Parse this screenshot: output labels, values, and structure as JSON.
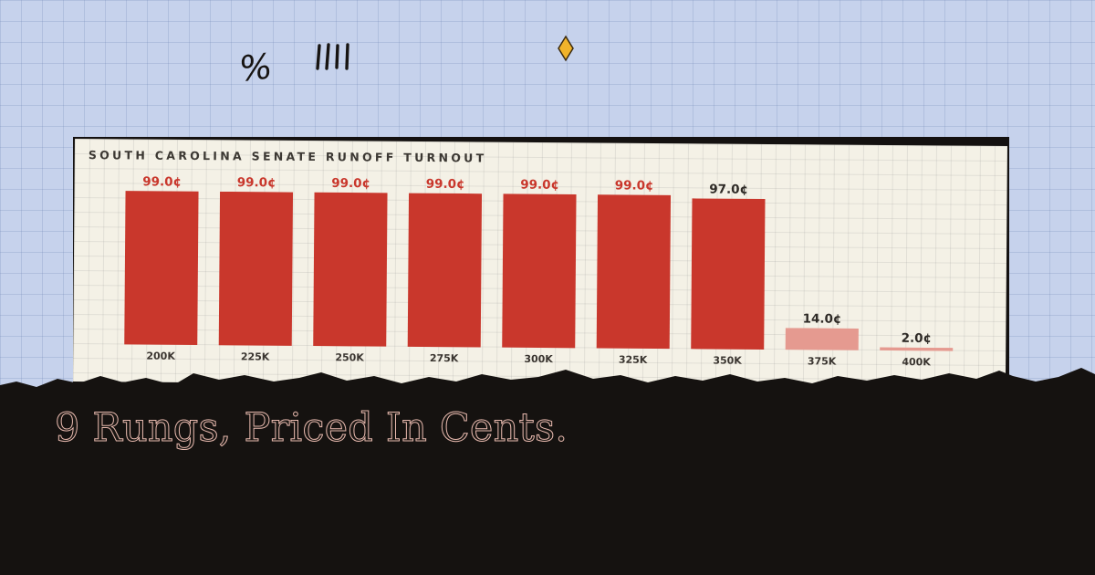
{
  "doodles": {
    "percent_glyph": "%"
  },
  "chart_data": {
    "type": "bar",
    "title": "SOUTH CAROLINA SENATE RUNOFF TURNOUT",
    "categories": [
      "200K",
      "225K",
      "250K",
      "275K",
      "300K",
      "325K",
      "350K",
      "375K",
      "400K"
    ],
    "values": [
      99.0,
      99.0,
      99.0,
      99.0,
      99.0,
      99.0,
      97.0,
      14.0,
      2.0
    ],
    "value_labels": [
      "99.0¢",
      "99.0¢",
      "99.0¢",
      "99.0¢",
      "99.0¢",
      "99.0¢",
      "97.0¢",
      "14.0¢",
      "2.0¢"
    ],
    "unit": "¢",
    "xlabel": "",
    "ylabel": "",
    "ylim": [
      0,
      100
    ],
    "grid": true,
    "colors": {
      "high": "#c9372c",
      "low": "#e59a90",
      "label_high": "#c9372c",
      "label_low": "#2e2a26"
    }
  },
  "headline": "9 Rungs, Priced In Cents."
}
